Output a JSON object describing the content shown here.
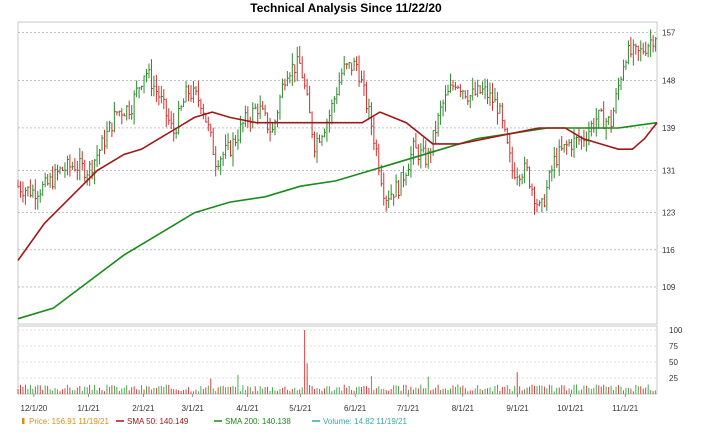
{
  "chart_data": {
    "type": "line",
    "title": "Technical Analysis Since 11/22/20",
    "grid": true,
    "price_panel": {
      "y_ticks": [
        109,
        116,
        123,
        131,
        139,
        148,
        157
      ],
      "ylim": [
        102,
        159
      ],
      "x_ticks": [
        "12/1/20",
        "1/1/21",
        "2/1/21",
        "3/1/21",
        "4/1/21",
        "5/1/21",
        "6/1/21",
        "7/1/21",
        "8/1/21",
        "9/1/21",
        "10/1/21",
        "11/1/21"
      ],
      "x_tick_days": [
        9,
        40,
        71,
        99,
        130,
        160,
        191,
        221,
        252,
        283,
        313,
        344
      ],
      "x_range_days": [
        0,
        362
      ],
      "price_color": "#2e8b2e",
      "price_down_color": "#d03030",
      "sma50": {
        "name": "SMA 50",
        "color": "#a01818",
        "x_days": [
          0,
          15,
          30,
          45,
          60,
          70,
          80,
          90,
          100,
          110,
          120,
          135,
          150,
          165,
          180,
          195,
          205,
          220,
          235,
          250,
          265,
          280,
          295,
          310,
          320,
          330,
          340,
          348,
          355,
          362
        ],
        "values": [
          114,
          121,
          126,
          131,
          134,
          135,
          137,
          139,
          141,
          142,
          141,
          140,
          140,
          140,
          140,
          140,
          142,
          140,
          136,
          136,
          137,
          138,
          139,
          139,
          137,
          136,
          135,
          135,
          137,
          140
        ]
      },
      "sma200": {
        "name": "SMA 200",
        "color": "#1a8a1a",
        "x_days": [
          0,
          20,
          40,
          60,
          80,
          100,
          120,
          140,
          160,
          180,
          200,
          220,
          240,
          260,
          280,
          300,
          320,
          340,
          362
        ],
        "values": [
          103,
          105,
          110,
          115,
          119,
          123,
          125,
          126,
          128,
          129,
          131,
          133,
          135,
          137,
          138,
          139,
          139,
          139,
          140
        ]
      },
      "price_series": {
        "name": "Price",
        "x_days": [
          0,
          8,
          16,
          24,
          32,
          40,
          48,
          56,
          64,
          72,
          80,
          88,
          96,
          104,
          112,
          120,
          128,
          136,
          144,
          152,
          160,
          168,
          176,
          184,
          192,
          200,
          208,
          216,
          224,
          232,
          240,
          248,
          256,
          264,
          272,
          280,
          288,
          296,
          304,
          312,
          320,
          328,
          336,
          344,
          352,
          362
        ],
        "values": [
          128,
          127,
          128,
          131,
          132,
          131,
          136,
          142,
          143,
          150,
          145,
          138,
          146,
          144,
          133,
          135,
          140,
          143,
          138,
          150,
          151,
          136,
          141,
          150,
          151,
          140,
          126,
          128,
          135,
          133,
          143,
          148,
          145,
          146,
          143,
          131,
          131,
          123,
          133,
          136,
          137,
          141,
          140,
          153,
          153,
          157
        ]
      }
    },
    "volume_panel": {
      "y_ticks": [
        25,
        50,
        75,
        100
      ],
      "ylim": [
        0,
        100
      ],
      "color_up": "#3aa03a",
      "color_down": "#d03030",
      "spikes": [
        [
          162,
          100
        ],
        [
          163,
          72
        ],
        [
          164,
          48
        ],
        [
          125,
          30
        ],
        [
          200,
          28
        ],
        [
          254,
          30
        ],
        [
          283,
          34
        ],
        [
          232,
          27
        ],
        [
          109,
          24
        ],
        [
          345,
          27
        ]
      ]
    },
    "legend": [
      {
        "label": "Price: 156.91  11/19/21",
        "color": "#e08a1e",
        "symbol": "bar"
      },
      {
        "label": "SMA 50: 140.149",
        "color": "#a01818",
        "symbol": "line"
      },
      {
        "label": "SMA 200: 140.138",
        "color": "#1a8a1a",
        "symbol": "line"
      },
      {
        "label": "Volume: 14.82  11/19/21",
        "color": "#3aa8a8",
        "symbol": "line"
      }
    ]
  }
}
